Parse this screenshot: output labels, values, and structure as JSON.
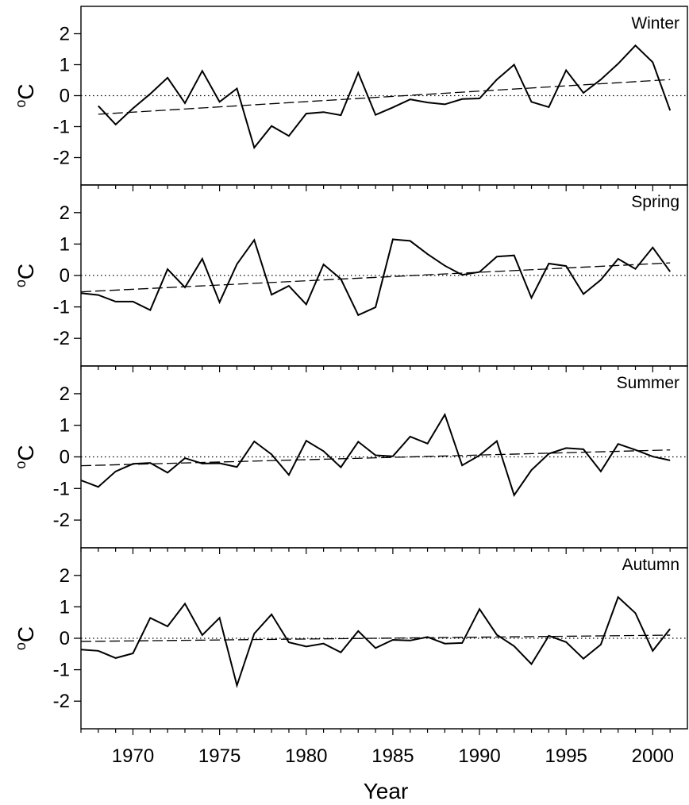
{
  "chart_data": [
    {
      "type": "line",
      "title": "Winter",
      "ylabel": "oC",
      "ylim": [
        -2.5,
        2.5
      ],
      "xlim": [
        1967,
        2002
      ],
      "yticks": [
        -2,
        -1,
        0,
        1,
        2
      ],
      "zero_line": "dotted",
      "trend_line": {
        "style": "dashed",
        "x": [
          1968,
          2001
        ],
        "y": [
          -0.6,
          0.52
        ]
      },
      "x": [
        1968,
        1969,
        1970,
        1971,
        1972,
        1973,
        1974,
        1975,
        1976,
        1977,
        1978,
        1979,
        1980,
        1981,
        1982,
        1983,
        1984,
        1985,
        1986,
        1987,
        1988,
        1989,
        1990,
        1991,
        1992,
        1993,
        1994,
        1995,
        1996,
        1997,
        1998,
        1999,
        2000,
        2001
      ],
      "values": [
        -0.33,
        -0.93,
        -0.41,
        0.06,
        0.58,
        -0.24,
        0.8,
        -0.2,
        0.23,
        -1.68,
        -0.98,
        -1.3,
        -0.58,
        -0.53,
        -0.63,
        0.74,
        -0.62,
        -0.38,
        -0.12,
        -0.22,
        -0.28,
        -0.11,
        -0.09,
        0.52,
        1.0,
        -0.2,
        -0.37,
        0.82,
        0.09,
        0.52,
        1.03,
        1.62,
        1.08,
        -0.48
      ]
    },
    {
      "type": "line",
      "title": "Spring",
      "ylabel": "oC",
      "ylim": [
        -2.5,
        2.5
      ],
      "xlim": [
        1967,
        2002
      ],
      "yticks": [
        -2,
        -1,
        0,
        1,
        2
      ],
      "zero_line": "dotted",
      "trend_line": {
        "style": "dashed",
        "x": [
          1967,
          2001
        ],
        "y": [
          -0.52,
          0.4
        ]
      },
      "x": [
        1967,
        1968,
        1969,
        1970,
        1971,
        1972,
        1973,
        1974,
        1975,
        1976,
        1977,
        1978,
        1979,
        1980,
        1981,
        1982,
        1983,
        1984,
        1985,
        1986,
        1987,
        1988,
        1989,
        1990,
        1991,
        1992,
        1993,
        1994,
        1995,
        1996,
        1997,
        1998,
        1999,
        2000,
        2001
      ],
      "values": [
        -0.56,
        -0.62,
        -0.83,
        -0.83,
        -1.1,
        0.2,
        -0.38,
        0.53,
        -0.85,
        0.36,
        1.13,
        -0.61,
        -0.33,
        -0.92,
        0.35,
        -0.11,
        -1.26,
        -1.01,
        1.15,
        1.1,
        0.68,
        0.31,
        0.02,
        0.11,
        0.6,
        0.64,
        -0.71,
        0.38,
        0.3,
        -0.59,
        -0.14,
        0.53,
        0.21,
        0.89,
        0.12
      ]
    },
    {
      "type": "line",
      "title": "Summer",
      "ylabel": "oC",
      "ylim": [
        -2.5,
        2.5
      ],
      "xlim": [
        1967,
        2002
      ],
      "yticks": [
        -2,
        -1,
        0,
        1,
        2
      ],
      "zero_line": "dotted",
      "trend_line": {
        "style": "dashed",
        "x": [
          1967,
          2001
        ],
        "y": [
          -0.28,
          0.22
        ]
      },
      "x": [
        1967,
        1968,
        1969,
        1970,
        1971,
        1972,
        1973,
        1974,
        1975,
        1976,
        1977,
        1978,
        1979,
        1980,
        1981,
        1982,
        1983,
        1984,
        1985,
        1986,
        1987,
        1988,
        1989,
        1990,
        1991,
        1992,
        1993,
        1994,
        1995,
        1996,
        1997,
        1998,
        1999,
        2000,
        2001
      ],
      "values": [
        -0.74,
        -0.95,
        -0.46,
        -0.22,
        -0.19,
        -0.5,
        -0.04,
        -0.21,
        -0.2,
        -0.32,
        0.49,
        0.08,
        -0.57,
        0.51,
        0.18,
        -0.33,
        0.48,
        0.05,
        0.02,
        0.64,
        0.42,
        1.34,
        -0.27,
        0.05,
        0.5,
        -1.21,
        -0.42,
        0.1,
        0.28,
        0.24,
        -0.46,
        0.41,
        0.22,
        0.01,
        -0.11
      ]
    },
    {
      "type": "line",
      "title": "Autumn",
      "ylabel": "oC",
      "xlabel": "Year",
      "ylim": [
        -2.5,
        2.5
      ],
      "xlim": [
        1967,
        2002
      ],
      "yticks": [
        -2,
        -1,
        0,
        1,
        2
      ],
      "xticks": [
        1970,
        1975,
        1980,
        1985,
        1990,
        1995,
        2000
      ],
      "zero_line": "dotted",
      "trend_line": {
        "style": "dashed",
        "x": [
          1967,
          2001
        ],
        "y": [
          -0.1,
          0.1
        ]
      },
      "x": [
        1967,
        1968,
        1969,
        1970,
        1971,
        1972,
        1973,
        1974,
        1975,
        1976,
        1977,
        1978,
        1979,
        1980,
        1981,
        1982,
        1983,
        1984,
        1985,
        1986,
        1987,
        1988,
        1989,
        1990,
        1991,
        1992,
        1993,
        1994,
        1995,
        1996,
        1997,
        1998,
        1999,
        2000,
        2001
      ],
      "values": [
        -0.36,
        -0.4,
        -0.63,
        -0.48,
        0.65,
        0.38,
        1.1,
        0.1,
        0.65,
        -1.5,
        0.15,
        0.76,
        -0.13,
        -0.26,
        -0.17,
        -0.45,
        0.23,
        -0.31,
        -0.05,
        -0.07,
        0.04,
        -0.17,
        -0.15,
        0.93,
        0.11,
        -0.25,
        -0.82,
        0.08,
        -0.12,
        -0.65,
        -0.2,
        1.31,
        0.8,
        -0.4,
        0.3
      ]
    }
  ]
}
